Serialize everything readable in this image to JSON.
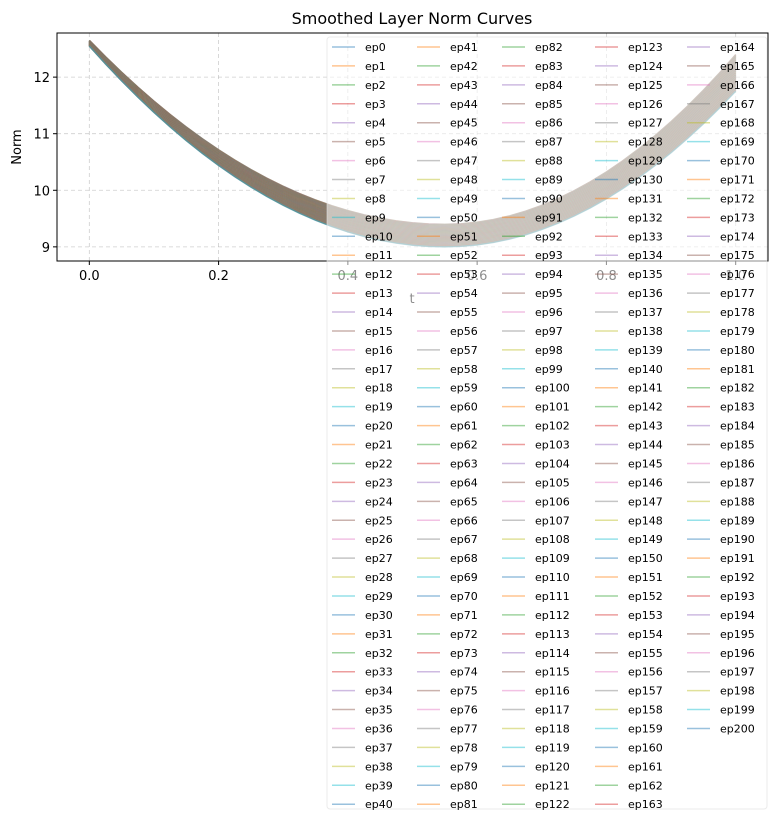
{
  "chart_data": {
    "type": "line",
    "title": "Smoothed Layer Norm Curves",
    "xlabel": "t",
    "ylabel": "Norm",
    "xlim": [
      -0.05,
      1.05
    ],
    "ylim": [
      8.75,
      12.78
    ],
    "x_ticks": [
      "0.0",
      "0.2",
      "0.4",
      "0.6",
      "0.8",
      "1.0"
    ],
    "x_tick_values": [
      0.0,
      0.2,
      0.4,
      0.6,
      0.8,
      1.0
    ],
    "y_ticks": [
      "9",
      "10",
      "11",
      "12"
    ],
    "y_tick_values": [
      9,
      10,
      11,
      12
    ],
    "grid": true,
    "grid_style": "dashed",
    "legend_placement": "overlapping upper right, extending below the axes",
    "legend_columns": 5,
    "series_count": 201,
    "series_shape": "quadratic curves, start near 12.6 at t=0, minimum near t=0.55",
    "series_start_value_range": [
      12.55,
      12.65
    ],
    "series_min_value_range": [
      9.0,
      9.4
    ],
    "series_end_value_range": [
      11.75,
      12.4
    ],
    "colors": [
      "#1f77b4",
      "#ff7f0e",
      "#2ca02c",
      "#d62728",
      "#9467bd",
      "#8c564b",
      "#e377c2",
      "#7f7f7f",
      "#bcbd22",
      "#17becf"
    ],
    "series_names": [
      "ep0",
      "ep1",
      "ep2",
      "ep3",
      "ep4",
      "ep5",
      "ep6",
      "ep7",
      "ep8",
      "ep9",
      "ep10",
      "ep11",
      "ep12",
      "ep13",
      "ep14",
      "ep15",
      "ep16",
      "ep17",
      "ep18",
      "ep19",
      "ep20",
      "ep21",
      "ep22",
      "ep23",
      "ep24",
      "ep25",
      "ep26",
      "ep27",
      "ep28",
      "ep29",
      "ep30",
      "ep31",
      "ep32",
      "ep33",
      "ep34",
      "ep35",
      "ep36",
      "ep37",
      "ep38",
      "ep39",
      "ep40",
      "ep41",
      "ep42",
      "ep43",
      "ep44",
      "ep45",
      "ep46",
      "ep47",
      "ep48",
      "ep49",
      "ep50",
      "ep51",
      "ep52",
      "ep53",
      "ep54",
      "ep55",
      "ep56",
      "ep57",
      "ep58",
      "ep59",
      "ep60",
      "ep61",
      "ep62",
      "ep63",
      "ep64",
      "ep65",
      "ep66",
      "ep67",
      "ep68",
      "ep69",
      "ep70",
      "ep71",
      "ep72",
      "ep73",
      "ep74",
      "ep75",
      "ep76",
      "ep77",
      "ep78",
      "ep79",
      "ep80",
      "ep81",
      "ep82",
      "ep83",
      "ep84",
      "ep85",
      "ep86",
      "ep87",
      "ep88",
      "ep89",
      "ep90",
      "ep91",
      "ep92",
      "ep93",
      "ep94",
      "ep95",
      "ep96",
      "ep97",
      "ep98",
      "ep99",
      "ep100",
      "ep101",
      "ep102",
      "ep103",
      "ep104",
      "ep105",
      "ep106",
      "ep107",
      "ep108",
      "ep109",
      "ep110",
      "ep111",
      "ep112",
      "ep113",
      "ep114",
      "ep115",
      "ep116",
      "ep117",
      "ep118",
      "ep119",
      "ep120",
      "ep121",
      "ep122",
      "ep123",
      "ep124",
      "ep125",
      "ep126",
      "ep127",
      "ep128",
      "ep129",
      "ep130",
      "ep131",
      "ep132",
      "ep133",
      "ep134",
      "ep135",
      "ep136",
      "ep137",
      "ep138",
      "ep139",
      "ep140",
      "ep141",
      "ep142",
      "ep143",
      "ep144",
      "ep145",
      "ep146",
      "ep147",
      "ep148",
      "ep149",
      "ep150",
      "ep151",
      "ep152",
      "ep153",
      "ep154",
      "ep155",
      "ep156",
      "ep157",
      "ep158",
      "ep159",
      "ep160",
      "ep161",
      "ep162",
      "ep163",
      "ep164",
      "ep165",
      "ep166",
      "ep167",
      "ep168",
      "ep169",
      "ep170",
      "ep171",
      "ep172",
      "ep173",
      "ep174",
      "ep175",
      "ep176",
      "ep177",
      "ep178",
      "ep179",
      "ep180",
      "ep181",
      "ep182",
      "ep183",
      "ep184",
      "ep185",
      "ep186",
      "ep187",
      "ep188",
      "ep189",
      "ep190",
      "ep191",
      "ep192",
      "ep193",
      "ep194",
      "ep195",
      "ep196",
      "ep197",
      "ep198",
      "ep199",
      "ep200"
    ]
  }
}
